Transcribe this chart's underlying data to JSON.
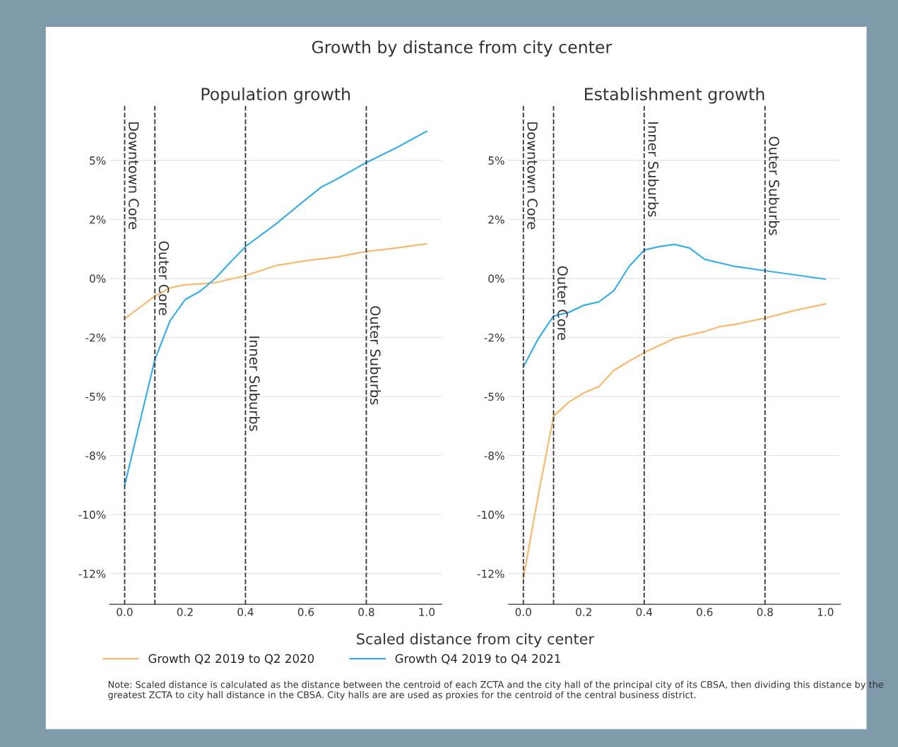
{
  "chart_data": [
    {
      "type": "line",
      "title": "Population growth",
      "xlabel": "Scaled distance from city center",
      "legend": "bottom",
      "grid": "y",
      "xlim": [
        -0.05,
        1.05
      ],
      "ylim": [
        -13.8,
        7.3
      ],
      "xticks": [
        {
          "value": 0,
          "label": "0.0"
        },
        {
          "value": 0.2,
          "label": "0.2"
        },
        {
          "value": 0.4,
          "label": "0.4"
        },
        {
          "value": 0.6,
          "label": "0.6"
        },
        {
          "value": 0.8,
          "label": "0.8"
        },
        {
          "value": 1,
          "label": "1.0"
        }
      ],
      "yticks": [
        {
          "value": 5,
          "label": "5%"
        },
        {
          "value": 2.5,
          "label": "2%"
        },
        {
          "value": 0,
          "label": "0%"
        },
        {
          "value": -2.5,
          "label": "-2%"
        },
        {
          "value": -5,
          "label": "-5%"
        },
        {
          "value": -7.5,
          "label": "-8%"
        },
        {
          "value": -10,
          "label": "-10%"
        },
        {
          "value": -12.5,
          "label": "-12%"
        }
      ],
      "ref_lines": [
        {
          "axis": "x",
          "value": 0,
          "label": "Downtown Core",
          "line_style": "dashed"
        },
        {
          "axis": "x",
          "value": 0.1,
          "label": "Outer Core",
          "line_style": "dashed"
        },
        {
          "axis": "x",
          "value": 0.4,
          "label": "Inner Suburbs",
          "line_style": "dashed"
        },
        {
          "axis": "x",
          "value": 0.8,
          "label": "Outer Suburbs",
          "line_style": "dashed"
        }
      ],
      "annotations": [
        "Growth by distance from city center",
        "Note: Scaled distance is calculated as the distance between the centroid of each ZCTA and the city hall of the principal city of its CBSA, then dividing this distance by the greatest ZCTA to city hall distance in the CBSA. City halls are are used as proxies for the centroid of the central business district."
      ],
      "series": [
        {
          "name": "Growth Q2 2019 to Q2 2020",
          "color": "#f8b970",
          "x": [
            0,
            0.1,
            0.15,
            0.2,
            0.3,
            0.4,
            0.5,
            0.6,
            0.7,
            0.8,
            0.9,
            1.0
          ],
          "values": [
            -1.7,
            -0.75,
            -0.4,
            -0.27,
            -0.18,
            0.12,
            0.54,
            0.75,
            0.9,
            1.14,
            1.29,
            1.47
          ]
        },
        {
          "name": "Growth Q4 2019 to Q4 2021",
          "color": "#3aaee8",
          "x": [
            0,
            0.05,
            0.1,
            0.15,
            0.2,
            0.25,
            0.3,
            0.35,
            0.4,
            0.5,
            0.6,
            0.65,
            0.7,
            0.8,
            0.9,
            1.0
          ],
          "values": [
            -8.77,
            -6.1,
            -3.44,
            -1.8,
            -0.9,
            -0.54,
            0,
            0.69,
            1.35,
            2.3,
            3.35,
            3.86,
            4.19,
            4.91,
            5.54,
            6.23
          ]
        }
      ]
    },
    {
      "type": "line",
      "title": "Establishment growth",
      "grid": "y",
      "xlim": [
        -0.05,
        1.05
      ],
      "ylim": [
        -13.8,
        7.3
      ],
      "xticks": [
        {
          "value": 0,
          "label": "0.0"
        },
        {
          "value": 0.2,
          "label": "0.2"
        },
        {
          "value": 0.4,
          "label": "0.4"
        },
        {
          "value": 0.6,
          "label": "0.6"
        },
        {
          "value": 0.8,
          "label": "0.8"
        },
        {
          "value": 1,
          "label": "1.0"
        }
      ],
      "yticks": [
        {
          "value": 5,
          "label": "5%"
        },
        {
          "value": 2.5,
          "label": "2%"
        },
        {
          "value": 0,
          "label": "0%"
        },
        {
          "value": -2.5,
          "label": "-2%"
        },
        {
          "value": -5,
          "label": "-5%"
        },
        {
          "value": -7.5,
          "label": "-8%"
        },
        {
          "value": -10,
          "label": "-10%"
        },
        {
          "value": -12.5,
          "label": "-12%"
        }
      ],
      "ref_lines": [
        {
          "axis": "x",
          "value": 0,
          "label": "Downtown Core",
          "line_style": "dashed"
        },
        {
          "axis": "x",
          "value": 0.1,
          "label": "Outer Core",
          "line_style": "dashed"
        },
        {
          "axis": "x",
          "value": 0.4,
          "label": "Inner Suburbs",
          "line_style": "dashed"
        },
        {
          "axis": "x",
          "value": 0.8,
          "label": "Outer Suburbs",
          "line_style": "dashed"
        }
      ],
      "series": [
        {
          "color": "#f8b970",
          "x": [
            0,
            0.05,
            0.1,
            0.15,
            0.2,
            0.25,
            0.3,
            0.35,
            0.4,
            0.5,
            0.6,
            0.65,
            0.7,
            0.8,
            0.9,
            1.0
          ],
          "values": [
            -12.7,
            -9.13,
            -5.84,
            -5.24,
            -4.85,
            -4.58,
            -3.89,
            -3.5,
            -3.14,
            -2.54,
            -2.25,
            -2.04,
            -1.95,
            -1.68,
            -1.35,
            -1.08
          ]
        },
        {
          "color": "#3aaee8",
          "x": [
            0,
            0.05,
            0.1,
            0.15,
            0.2,
            0.25,
            0.3,
            0.35,
            0.4,
            0.45,
            0.5,
            0.55,
            0.6,
            0.7,
            0.8,
            0.9,
            1.0
          ],
          "values": [
            -3.74,
            -2.54,
            -1.59,
            -1.44,
            -1.14,
            -0.99,
            -0.51,
            0.51,
            1.2,
            1.35,
            1.44,
            1.29,
            0.81,
            0.51,
            0.33,
            0.15,
            -0.03
          ]
        }
      ]
    }
  ]
}
